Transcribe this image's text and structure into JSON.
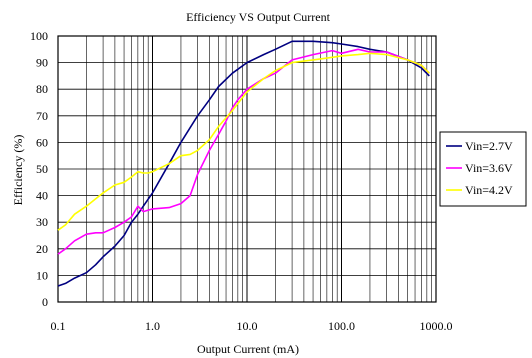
{
  "chart_data": {
    "type": "line",
    "title": "Efficiency VS Output Current",
    "xlabel": "Output Current (mA)",
    "ylabel": "Efficiency (%)",
    "x_scale": "log",
    "xlim": [
      0.1,
      1000.0
    ],
    "ylim": [
      0,
      100
    ],
    "x_ticks": [
      {
        "value": 0.1,
        "label": "0.1"
      },
      {
        "value": 1,
        "label": "1.0"
      },
      {
        "value": 10,
        "label": "10.0"
      },
      {
        "value": 100,
        "label": "100.0"
      },
      {
        "value": 1000,
        "label": "1000.0"
      }
    ],
    "y_ticks": [
      0,
      10,
      20,
      30,
      40,
      50,
      60,
      70,
      80,
      90,
      100
    ],
    "grid": true,
    "legend_position": "right",
    "series": [
      {
        "name": "Vin=2.7V",
        "color": "#000080",
        "points": [
          [
            0.1,
            6
          ],
          [
            0.12,
            7
          ],
          [
            0.15,
            9
          ],
          [
            0.2,
            11
          ],
          [
            0.25,
            14
          ],
          [
            0.3,
            17
          ],
          [
            0.4,
            21
          ],
          [
            0.5,
            25
          ],
          [
            0.6,
            30
          ],
          [
            0.7,
            33
          ],
          [
            0.8,
            36
          ],
          [
            1.0,
            41
          ],
          [
            1.5,
            52
          ],
          [
            2,
            60
          ],
          [
            3,
            70
          ],
          [
            4,
            76
          ],
          [
            5,
            81
          ],
          [
            7,
            86
          ],
          [
            10,
            90
          ],
          [
            15,
            93
          ],
          [
            20,
            95
          ],
          [
            30,
            98
          ],
          [
            50,
            98
          ],
          [
            80,
            97.5
          ],
          [
            100,
            97
          ],
          [
            150,
            96
          ],
          [
            200,
            95
          ],
          [
            300,
            94
          ],
          [
            500,
            91
          ],
          [
            700,
            88
          ],
          [
            850,
            85
          ]
        ]
      },
      {
        "name": "Vin=3.6V",
        "color": "#ff00ff",
        "points": [
          [
            0.1,
            18
          ],
          [
            0.12,
            20
          ],
          [
            0.15,
            23
          ],
          [
            0.2,
            25.5
          ],
          [
            0.25,
            26
          ],
          [
            0.3,
            26
          ],
          [
            0.4,
            28
          ],
          [
            0.5,
            30
          ],
          [
            0.6,
            32
          ],
          [
            0.7,
            36
          ],
          [
            0.8,
            34
          ],
          [
            1.0,
            35
          ],
          [
            1.5,
            35.5
          ],
          [
            2,
            37
          ],
          [
            2.5,
            40
          ],
          [
            3,
            48
          ],
          [
            4,
            57
          ],
          [
            5,
            63
          ],
          [
            6,
            68
          ],
          [
            7,
            73
          ],
          [
            8,
            76
          ],
          [
            10,
            80
          ],
          [
            15,
            84
          ],
          [
            20,
            86
          ],
          [
            30,
            91
          ],
          [
            50,
            93
          ],
          [
            80,
            94.5
          ],
          [
            100,
            93.5
          ],
          [
            150,
            95
          ],
          [
            200,
            94
          ],
          [
            300,
            94
          ],
          [
            500,
            91
          ],
          [
            700,
            89
          ],
          [
            850,
            86
          ]
        ]
      },
      {
        "name": "Vin=4.2V",
        "color": "#ffff00",
        "points": [
          [
            0.1,
            27
          ],
          [
            0.12,
            29
          ],
          [
            0.15,
            33
          ],
          [
            0.2,
            36
          ],
          [
            0.3,
            41
          ],
          [
            0.4,
            44
          ],
          [
            0.5,
            45
          ],
          [
            0.6,
            47
          ],
          [
            0.7,
            49
          ],
          [
            0.8,
            48.5
          ],
          [
            0.9,
            48.5
          ],
          [
            1.0,
            49
          ],
          [
            1.5,
            52
          ],
          [
            2,
            55
          ],
          [
            2.5,
            55.5
          ],
          [
            3,
            57
          ],
          [
            4,
            61
          ],
          [
            5,
            66
          ],
          [
            7,
            72
          ],
          [
            10,
            79
          ],
          [
            15,
            84
          ],
          [
            20,
            87
          ],
          [
            30,
            90
          ],
          [
            50,
            91
          ],
          [
            80,
            92
          ],
          [
            100,
            92.5
          ],
          [
            150,
            93
          ],
          [
            200,
            93.5
          ],
          [
            300,
            93
          ],
          [
            500,
            91
          ],
          [
            700,
            89
          ],
          [
            850,
            86
          ]
        ]
      }
    ]
  }
}
